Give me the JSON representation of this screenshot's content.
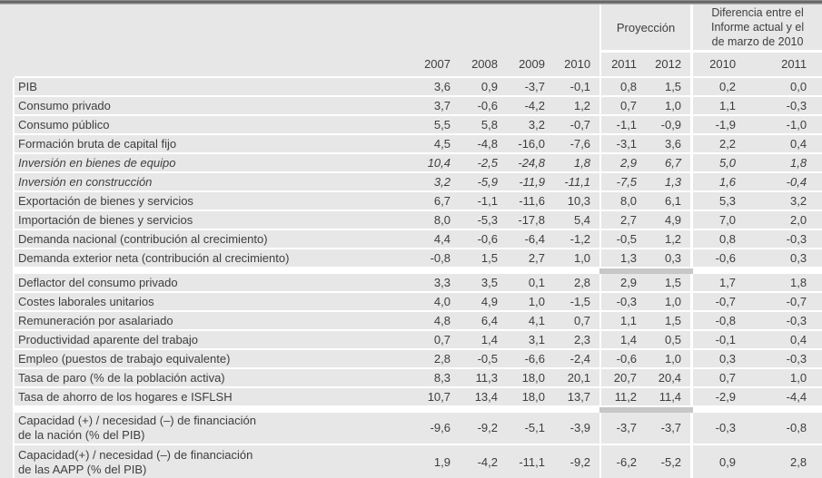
{
  "header": {
    "projection_label": "Proyección",
    "difference_label": "Diferencia entre el\nInforme actual y el\nde marzo de 2010",
    "years": [
      "2007",
      "2008",
      "2009",
      "2010",
      "2011",
      "2012",
      "2010",
      "2011"
    ]
  },
  "accent_colors": {
    "row_gray": "#e7e7e7",
    "projection_band_gray": "#c7c7c7",
    "text": "#3e3e3e"
  },
  "rows": [
    {
      "type": "data",
      "label": "PIB",
      "italic": false,
      "values": [
        "3,6",
        "0,9",
        "-3,7",
        "-0,1",
        "0,8",
        "1,5",
        "0,2",
        "0,0"
      ]
    },
    {
      "type": "data",
      "label": "Consumo privado",
      "italic": false,
      "values": [
        "3,7",
        "-0,6",
        "-4,2",
        "1,2",
        "0,7",
        "1,0",
        "1,1",
        "-0,3"
      ]
    },
    {
      "type": "data",
      "label": "Consumo público",
      "italic": false,
      "values": [
        "5,5",
        "5,8",
        "3,2",
        "-0,7",
        "-1,1",
        "-0,9",
        "-1,9",
        "-1,0"
      ]
    },
    {
      "type": "data",
      "label": "Formación bruta de capital fijo",
      "italic": false,
      "values": [
        "4,5",
        "-4,8",
        "-16,0",
        "-7,6",
        "-3,1",
        "3,6",
        "2,2",
        "0,4"
      ]
    },
    {
      "type": "data",
      "label": "Inversión en bienes de equipo",
      "italic": true,
      "values": [
        "10,4",
        "-2,5",
        "-24,8",
        "1,8",
        "2,9",
        "6,7",
        "5,0",
        "1,8"
      ]
    },
    {
      "type": "data",
      "label": "Inversión en construcción",
      "italic": true,
      "values": [
        "3,2",
        "-5,9",
        "-11,9",
        "-11,1",
        "-7,5",
        "1,3",
        "1,6",
        "-0,4"
      ]
    },
    {
      "type": "data",
      "label": "Exportación de bienes y servicios",
      "italic": false,
      "values": [
        "6,7",
        "-1,1",
        "-11,6",
        "10,3",
        "8,0",
        "6,1",
        "5,3",
        "3,2"
      ]
    },
    {
      "type": "data",
      "label": "Importación de bienes y servicios",
      "italic": false,
      "values": [
        "8,0",
        "-5,3",
        "-17,8",
        "5,4",
        "2,7",
        "4,9",
        "7,0",
        "2,0"
      ]
    },
    {
      "type": "data",
      "label": "Demanda nacional (contribución al crecimiento)",
      "italic": false,
      "values": [
        "4,4",
        "-0,6",
        "-6,4",
        "-1,2",
        "-0,5",
        "1,2",
        "0,8",
        "-0,3"
      ]
    },
    {
      "type": "data",
      "label": "Demanda exterior neta (contribución al crecimiento)",
      "italic": false,
      "values": [
        "-0,8",
        "1,5",
        "2,7",
        "1,0",
        "1,3",
        "0,3",
        "-0,6",
        "0,3"
      ]
    },
    {
      "type": "gap"
    },
    {
      "type": "data",
      "label": "Deflactor del consumo privado",
      "italic": false,
      "values": [
        "3,3",
        "3,5",
        "0,1",
        "2,8",
        "2,9",
        "1,5",
        "1,7",
        "1,8"
      ]
    },
    {
      "type": "data",
      "label": "Costes laborales unitarios",
      "italic": false,
      "values": [
        "4,0",
        "4,9",
        "1,0",
        "-1,5",
        "-0,3",
        "1,0",
        "-0,7",
        "-0,7"
      ]
    },
    {
      "type": "data",
      "label": "Remuneración por asalariado",
      "italic": false,
      "values": [
        "4,8",
        "6,4",
        "4,1",
        "0,7",
        "1,1",
        "1,5",
        "-0,8",
        "-0,3"
      ]
    },
    {
      "type": "data",
      "label": "Productividad aparente del trabajo",
      "italic": false,
      "values": [
        "0,7",
        "1,4",
        "3,1",
        "2,3",
        "1,4",
        "0,5",
        "-0,1",
        "0,4"
      ]
    },
    {
      "type": "data",
      "label": "Empleo (puestos de trabajo equivalente)",
      "italic": false,
      "values": [
        "2,8",
        "-0,5",
        "-6,6",
        "-2,4",
        "-0,6",
        "1,0",
        "0,3",
        "-0,3"
      ]
    },
    {
      "type": "data",
      "label": "Tasa de paro (% de la población activa)",
      "italic": false,
      "values": [
        "8,3",
        "11,3",
        "18,0",
        "20,1",
        "20,7",
        "20,4",
        "0,7",
        "1,0"
      ]
    },
    {
      "type": "data",
      "label": "Tasa de ahorro de los hogares e ISFLSH",
      "italic": false,
      "values": [
        "10,7",
        "13,4",
        "18,0",
        "13,7",
        "11,2",
        "11,4",
        "-2,9",
        "-4,4"
      ]
    },
    {
      "type": "gap"
    },
    {
      "type": "data",
      "label": "Capacidad (+) / necesidad (–) de financiación\nde la nación (% del PIB)",
      "italic": false,
      "tall": true,
      "values": [
        "-9,6",
        "-9,2",
        "-5,1",
        "-3,9",
        "-3,7",
        "-3,7",
        "-0,3",
        "-0,8"
      ]
    },
    {
      "type": "data",
      "label": "Capacidad(+) / necesidad (–) de financiación\nde las AAPP (% del PIB)",
      "italic": false,
      "tall": true,
      "last": true,
      "values": [
        "1,9",
        "-4,2",
        "-11,1",
        "-9,2",
        "-6,2",
        "-5,2",
        "0,9",
        "2,8"
      ]
    }
  ]
}
